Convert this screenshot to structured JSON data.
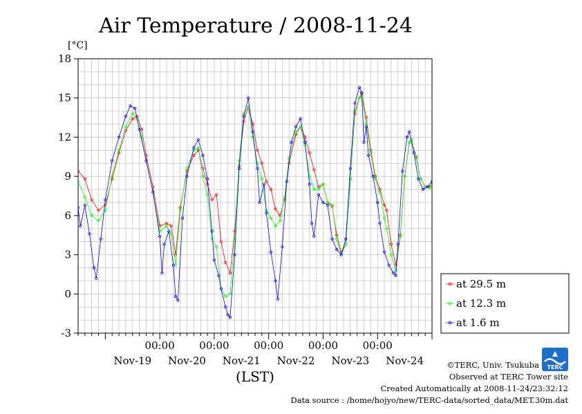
{
  "chart_data": {
    "type": "line",
    "title": "Air Temperature / 2008-11-24",
    "ylabel": "[°C]",
    "xlabel": "(LST)",
    "ylim": [
      -3,
      18
    ],
    "yticks": [
      -3,
      0,
      3,
      6,
      9,
      12,
      15,
      18
    ],
    "xlim": [
      "2008-11-18T12:00",
      "2008-11-24T24:00"
    ],
    "x_time_ticks": [
      {
        "time": "2008-11-20T00:00",
        "label": "00:00"
      },
      {
        "time": "2008-11-21T00:00",
        "label": "00:00"
      },
      {
        "time": "2008-11-22T00:00",
        "label": "00:00"
      },
      {
        "time": "2008-11-23T00:00",
        "label": "00:00"
      },
      {
        "time": "2008-11-24T00:00",
        "label": "00:00"
      }
    ],
    "x_day_labels": [
      {
        "time": "2008-11-19T12:00",
        "label": "Nov-19"
      },
      {
        "time": "2008-11-20T12:00",
        "label": "Nov-20"
      },
      {
        "time": "2008-11-21T12:00",
        "label": "Nov-21"
      },
      {
        "time": "2008-11-22T12:00",
        "label": "Nov-22"
      },
      {
        "time": "2008-11-23T12:00",
        "label": "Nov-23"
      },
      {
        "time": "2008-11-24T12:00",
        "label": "Nov-24"
      }
    ],
    "grid": true,
    "legend_position": "right",
    "series": [
      {
        "name": "at 29.5 m",
        "color": "#ff0000",
        "points": [
          [
            "2008-11-18T12:00",
            9.4
          ],
          [
            "2008-11-18T15:00",
            8.8
          ],
          [
            "2008-11-18T18:00",
            7.2
          ],
          [
            "2008-11-18T21:00",
            6.4
          ],
          [
            "2008-11-19T00:00",
            6.8
          ],
          [
            "2008-11-19T03:00",
            8.8
          ],
          [
            "2008-11-19T06:00",
            10.8
          ],
          [
            "2008-11-19T09:00",
            12.5
          ],
          [
            "2008-11-19T12:00",
            13.4
          ],
          [
            "2008-11-19T14:00",
            13.6
          ],
          [
            "2008-11-19T16:00",
            12.6
          ],
          [
            "2008-11-19T18:00",
            10.6
          ],
          [
            "2008-11-19T21:00",
            8.2
          ],
          [
            "2008-11-20T00:00",
            5.2
          ],
          [
            "2008-11-20T03:00",
            5.4
          ],
          [
            "2008-11-20T05:00",
            5.2
          ],
          [
            "2008-11-20T07:00",
            3.0
          ],
          [
            "2008-11-20T09:00",
            6.6
          ],
          [
            "2008-11-20T12:00",
            9.4
          ],
          [
            "2008-11-20T15:00",
            10.6
          ],
          [
            "2008-11-20T17:00",
            11.0
          ],
          [
            "2008-11-20T19:00",
            9.6
          ],
          [
            "2008-11-20T21:00",
            8.4
          ],
          [
            "2008-11-20T23:00",
            7.2
          ],
          [
            "2008-11-21T01:00",
            7.6
          ],
          [
            "2008-11-21T03:00",
            4.0
          ],
          [
            "2008-11-21T05:00",
            2.4
          ],
          [
            "2008-11-21T07:00",
            1.6
          ],
          [
            "2008-11-21T09:00",
            4.8
          ],
          [
            "2008-11-21T11:00",
            9.8
          ],
          [
            "2008-11-21T13:00",
            13.2
          ],
          [
            "2008-11-21T15:00",
            14.3
          ],
          [
            "2008-11-21T17:00",
            13.0
          ],
          [
            "2008-11-21T19:00",
            11.0
          ],
          [
            "2008-11-21T21:00",
            10.0
          ],
          [
            "2008-11-21T23:00",
            8.6
          ],
          [
            "2008-11-22T01:00",
            8.0
          ],
          [
            "2008-11-22T03:00",
            6.5
          ],
          [
            "2008-11-22T05:00",
            6.0
          ],
          [
            "2008-11-22T07:00",
            7.2
          ],
          [
            "2008-11-22T09:00",
            10.0
          ],
          [
            "2008-11-22T12:00",
            12.2
          ],
          [
            "2008-11-22T14:00",
            12.8
          ],
          [
            "2008-11-22T16:00",
            12.0
          ],
          [
            "2008-11-22T18:00",
            10.8
          ],
          [
            "2008-11-22T20:00",
            9.5
          ],
          [
            "2008-11-22T22:00",
            8.2
          ],
          [
            "2008-11-23T00:00",
            8.4
          ],
          [
            "2008-11-23T02:00",
            7.0
          ],
          [
            "2008-11-23T04:00",
            6.7
          ],
          [
            "2008-11-23T06:00",
            4.5
          ],
          [
            "2008-11-23T08:00",
            3.2
          ],
          [
            "2008-11-23T10:00",
            3.8
          ],
          [
            "2008-11-23T12:00",
            8.8
          ],
          [
            "2008-11-23T14:00",
            13.8
          ],
          [
            "2008-11-23T16:00",
            15.0
          ],
          [
            "2008-11-23T17:00",
            15.3
          ],
          [
            "2008-11-23T19:00",
            13.5
          ],
          [
            "2008-11-23T21:00",
            11.0
          ],
          [
            "2008-11-23T23:00",
            9.0
          ],
          [
            "2008-11-24T01:00",
            8.0
          ],
          [
            "2008-11-24T03:00",
            6.8
          ],
          [
            "2008-11-24T04:00",
            6.4
          ],
          [
            "2008-11-24T06:00",
            3.8
          ],
          [
            "2008-11-24T08:00",
            2.2
          ],
          [
            "2008-11-24T10:00",
            4.5
          ],
          [
            "2008-11-24T12:00",
            9.0
          ],
          [
            "2008-11-24T14:00",
            11.6
          ],
          [
            "2008-11-24T15:00",
            11.8
          ],
          [
            "2008-11-24T17:00",
            10.5
          ],
          [
            "2008-11-24T19:00",
            8.8
          ],
          [
            "2008-11-24T21:00",
            8.2
          ],
          [
            "2008-11-24T23:00",
            8.2
          ],
          [
            "2008-11-24T24:00",
            8.4
          ]
        ]
      },
      {
        "name": "at 12.3 m",
        "color": "#00ff00",
        "points": [
          [
            "2008-11-18T12:00",
            8.6
          ],
          [
            "2008-11-18T15:00",
            7.4
          ],
          [
            "2008-11-18T18:00",
            6.0
          ],
          [
            "2008-11-18T21:00",
            5.6
          ],
          [
            "2008-11-19T00:00",
            6.4
          ],
          [
            "2008-11-19T03:00",
            9.0
          ],
          [
            "2008-11-19T06:00",
            11.0
          ],
          [
            "2008-11-19T09:00",
            12.8
          ],
          [
            "2008-11-19T12:00",
            13.8
          ],
          [
            "2008-11-19T14:00",
            13.4
          ],
          [
            "2008-11-19T16:00",
            12.0
          ],
          [
            "2008-11-19T18:00",
            10.2
          ],
          [
            "2008-11-19T21:00",
            7.8
          ],
          [
            "2008-11-20T00:00",
            4.8
          ],
          [
            "2008-11-20T03:00",
            5.2
          ],
          [
            "2008-11-20T05:00",
            4.6
          ],
          [
            "2008-11-20T07:00",
            2.2
          ],
          [
            "2008-11-20T09:00",
            6.4
          ],
          [
            "2008-11-20T12:00",
            9.6
          ],
          [
            "2008-11-20T15:00",
            11.0
          ],
          [
            "2008-11-20T17:00",
            11.2
          ],
          [
            "2008-11-20T19:00",
            9.0
          ],
          [
            "2008-11-20T21:00",
            7.6
          ],
          [
            "2008-11-20T23:00",
            4.2
          ],
          [
            "2008-11-21T01:00",
            3.6
          ],
          [
            "2008-11-21T03:00",
            0.4
          ],
          [
            "2008-11-21T05:00",
            -0.2
          ],
          [
            "2008-11-21T07:00",
            0.0
          ],
          [
            "2008-11-21T09:00",
            4.2
          ],
          [
            "2008-11-21T11:00",
            10.2
          ],
          [
            "2008-11-21T13:00",
            13.8
          ],
          [
            "2008-11-21T15:00",
            14.3
          ],
          [
            "2008-11-21T17:00",
            12.0
          ],
          [
            "2008-11-21T19:00",
            10.0
          ],
          [
            "2008-11-21T21:00",
            8.8
          ],
          [
            "2008-11-21T23:00",
            6.4
          ],
          [
            "2008-11-22T01:00",
            5.8
          ],
          [
            "2008-11-22T03:00",
            5.2
          ],
          [
            "2008-11-22T05:00",
            5.6
          ],
          [
            "2008-11-22T07:00",
            7.4
          ],
          [
            "2008-11-22T09:00",
            10.4
          ],
          [
            "2008-11-22T12:00",
            12.4
          ],
          [
            "2008-11-22T14:00",
            12.8
          ],
          [
            "2008-11-22T16:00",
            11.4
          ],
          [
            "2008-11-22T18:00",
            9.0
          ],
          [
            "2008-11-22T20:00",
            8.0
          ],
          [
            "2008-11-22T22:00",
            8.0
          ],
          [
            "2008-11-23T00:00",
            8.4
          ],
          [
            "2008-11-23T02:00",
            7.0
          ],
          [
            "2008-11-23T04:00",
            6.8
          ],
          [
            "2008-11-23T06:00",
            4.2
          ],
          [
            "2008-11-23T08:00",
            3.0
          ],
          [
            "2008-11-23T10:00",
            3.8
          ],
          [
            "2008-11-23T12:00",
            8.8
          ],
          [
            "2008-11-23T14:00",
            14.0
          ],
          [
            "2008-11-23T16:00",
            15.0
          ],
          [
            "2008-11-23T17:00",
            15.2
          ],
          [
            "2008-11-23T19:00",
            13.0
          ],
          [
            "2008-11-23T21:00",
            10.8
          ],
          [
            "2008-11-23T23:00",
            8.8
          ],
          [
            "2008-11-24T01:00",
            7.8
          ],
          [
            "2008-11-24T03:00",
            5.8
          ],
          [
            "2008-11-24T04:00",
            5.0
          ],
          [
            "2008-11-24T06:00",
            3.0
          ],
          [
            "2008-11-24T08:00",
            1.8
          ],
          [
            "2008-11-24T10:00",
            4.4
          ],
          [
            "2008-11-24T12:00",
            9.0
          ],
          [
            "2008-11-24T14:00",
            11.6
          ],
          [
            "2008-11-24T15:00",
            11.8
          ],
          [
            "2008-11-24T17:00",
            10.4
          ],
          [
            "2008-11-24T19:00",
            8.8
          ],
          [
            "2008-11-24T21:00",
            8.2
          ],
          [
            "2008-11-24T23:00",
            8.1
          ],
          [
            "2008-11-24T24:00",
            8.4
          ]
        ]
      },
      {
        "name": "at 1.6 m",
        "color": "#0000ff",
        "points": [
          [
            "2008-11-18T12:00",
            6.6
          ],
          [
            "2008-11-18T13:00",
            5.2
          ],
          [
            "2008-11-18T15:00",
            6.8
          ],
          [
            "2008-11-18T17:00",
            4.6
          ],
          [
            "2008-11-18T19:00",
            2.0
          ],
          [
            "2008-11-18T20:00",
            1.2
          ],
          [
            "2008-11-18T22:00",
            4.2
          ],
          [
            "2008-11-19T00:00",
            7.2
          ],
          [
            "2008-11-19T03:00",
            10.2
          ],
          [
            "2008-11-19T06:00",
            12.0
          ],
          [
            "2008-11-19T09:00",
            13.6
          ],
          [
            "2008-11-19T11:00",
            14.4
          ],
          [
            "2008-11-19T13:00",
            14.2
          ],
          [
            "2008-11-19T15:00",
            12.6
          ],
          [
            "2008-11-19T18:00",
            10.2
          ],
          [
            "2008-11-19T21:00",
            7.8
          ],
          [
            "2008-11-20T00:00",
            4.4
          ],
          [
            "2008-11-20T01:00",
            1.6
          ],
          [
            "2008-11-20T02:00",
            3.8
          ],
          [
            "2008-11-20T04:00",
            4.8
          ],
          [
            "2008-11-20T06:00",
            2.2
          ],
          [
            "2008-11-20T07:00",
            -0.2
          ],
          [
            "2008-11-20T08:00",
            -0.5
          ],
          [
            "2008-11-20T10:00",
            5.8
          ],
          [
            "2008-11-20T12:00",
            9.0
          ],
          [
            "2008-11-20T15:00",
            11.2
          ],
          [
            "2008-11-20T17:00",
            11.8
          ],
          [
            "2008-11-20T19:00",
            10.6
          ],
          [
            "2008-11-20T21:00",
            8.8
          ],
          [
            "2008-11-20T23:00",
            4.8
          ],
          [
            "2008-11-21T00:00",
            2.6
          ],
          [
            "2008-11-21T02:00",
            1.4
          ],
          [
            "2008-11-21T03:00",
            0.4
          ],
          [
            "2008-11-21T05:00",
            -1.0
          ],
          [
            "2008-11-21T06:00",
            -1.6
          ],
          [
            "2008-11-21T07:00",
            -1.8
          ],
          [
            "2008-11-21T09:00",
            3.0
          ],
          [
            "2008-11-21T11:00",
            9.6
          ],
          [
            "2008-11-21T13:00",
            13.6
          ],
          [
            "2008-11-21T15:00",
            15.0
          ],
          [
            "2008-11-21T17:00",
            12.4
          ],
          [
            "2008-11-21T19:00",
            9.6
          ],
          [
            "2008-11-21T20:00",
            7.0
          ],
          [
            "2008-11-21T22:00",
            8.4
          ],
          [
            "2008-11-21T23:00",
            6.2
          ],
          [
            "2008-11-22T01:00",
            3.2
          ],
          [
            "2008-11-22T03:00",
            1.0
          ],
          [
            "2008-11-22T04:00",
            -0.4
          ],
          [
            "2008-11-22T06:00",
            3.6
          ],
          [
            "2008-11-22T08:00",
            8.6
          ],
          [
            "2008-11-22T10:00",
            11.6
          ],
          [
            "2008-11-22T12:00",
            12.8
          ],
          [
            "2008-11-22T14:00",
            13.4
          ],
          [
            "2008-11-22T16:00",
            11.6
          ],
          [
            "2008-11-22T18:00",
            8.4
          ],
          [
            "2008-11-22T19:00",
            5.4
          ],
          [
            "2008-11-22T20:00",
            4.4
          ],
          [
            "2008-11-22T22:00",
            7.6
          ],
          [
            "2008-11-23T00:00",
            7.0
          ],
          [
            "2008-11-23T02:00",
            6.8
          ],
          [
            "2008-11-23T04:00",
            4.2
          ],
          [
            "2008-11-23T06:00",
            3.4
          ],
          [
            "2008-11-23T08:00",
            3.0
          ],
          [
            "2008-11-23T10:00",
            4.2
          ],
          [
            "2008-11-23T12:00",
            9.6
          ],
          [
            "2008-11-23T14:00",
            14.6
          ],
          [
            "2008-11-23T16:00",
            15.8
          ],
          [
            "2008-11-23T17:00",
            15.4
          ],
          [
            "2008-11-23T18:00",
            11.6
          ],
          [
            "2008-11-23T19:00",
            12.8
          ],
          [
            "2008-11-23T20:00",
            10.6
          ],
          [
            "2008-11-23T22:00",
            9.0
          ],
          [
            "2008-11-24T00:00",
            7.0
          ],
          [
            "2008-11-24T01:00",
            5.4
          ],
          [
            "2008-11-24T03:00",
            3.2
          ],
          [
            "2008-11-24T05:00",
            2.2
          ],
          [
            "2008-11-24T07:00",
            1.6
          ],
          [
            "2008-11-24T08:00",
            1.4
          ],
          [
            "2008-11-24T09:00",
            3.8
          ],
          [
            "2008-11-24T11:00",
            9.4
          ],
          [
            "2008-11-24T13:00",
            12.0
          ],
          [
            "2008-11-24T14:00",
            12.4
          ],
          [
            "2008-11-24T16:00",
            10.8
          ],
          [
            "2008-11-24T18:00",
            8.8
          ],
          [
            "2008-11-24T20:00",
            8.0
          ],
          [
            "2008-11-24T22:00",
            8.2
          ],
          [
            "2008-11-24T24:00",
            8.6
          ]
        ]
      }
    ]
  },
  "credits": {
    "copyright": "©TERC, Univ. Tsukuba",
    "observed": "Observed at TERC Tower site",
    "created": "Created Automatically at 2008-11-24/23:32:12",
    "source": "Data source : /home/hojyo/new/TERC-data/sorted_data/MET.30m.dat",
    "logo_text": "TERC"
  }
}
